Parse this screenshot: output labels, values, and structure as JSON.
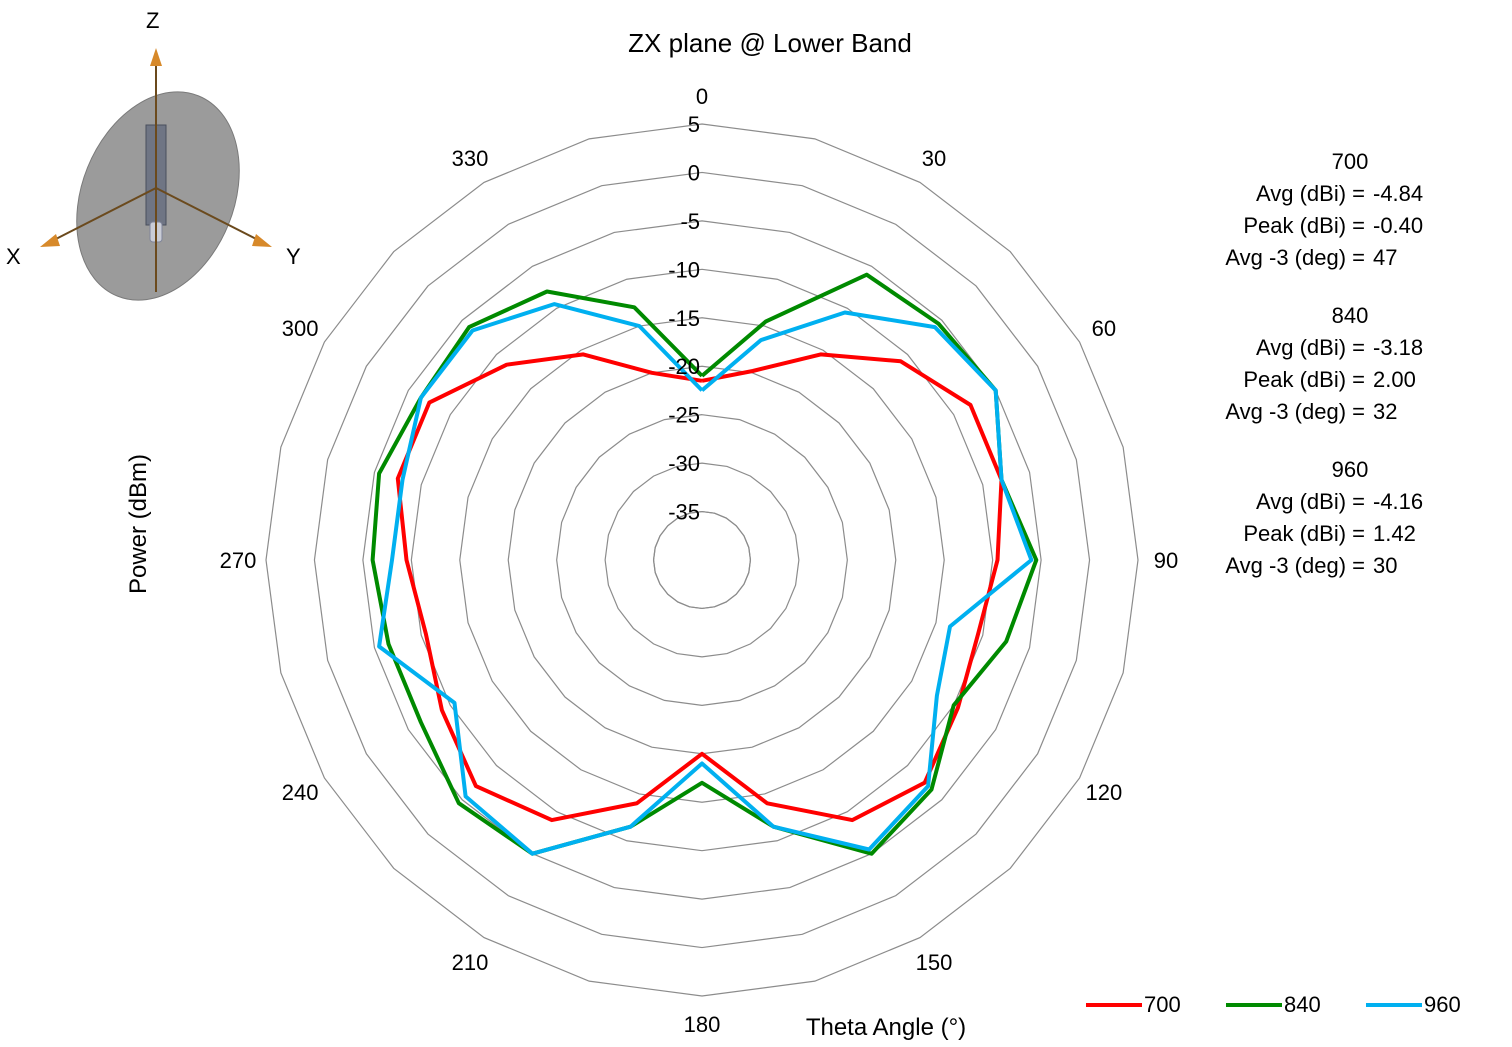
{
  "colors": {
    "s700": "#ff0000",
    "s840": "#008a00",
    "s960": "#00b0f0",
    "grid": "#8c8c8c"
  },
  "axis_icon": {
    "z": "Z",
    "x": "X",
    "y": "Y"
  },
  "stats": [
    {
      "name": "700",
      "avg_label": "Avg (dBi) =",
      "avg": "-4.84",
      "peak_label": "Peak (dBi) =",
      "peak": "-0.40",
      "avg3_label": "Avg -3 (deg) =",
      "avg3": "47"
    },
    {
      "name": "840",
      "avg_label": "Avg (dBi) =",
      "avg": "-3.18",
      "peak_label": "Peak (dBi) =",
      "peak": "2.00",
      "avg3_label": "Avg -3 (deg) =",
      "avg3": "32"
    },
    {
      "name": "960",
      "avg_label": "Avg (dBi) =",
      "avg": "-4.16",
      "peak_label": "Peak (dBi) =",
      "peak": "1.42",
      "avg3_label": "Avg -3 (deg) =",
      "avg3": "30"
    }
  ],
  "chart_data": {
    "type": "polar-line",
    "title": "ZX plane @ Lower Band",
    "radial_label": "Power (dBm)",
    "angle_label": "Theta  Angle (°)",
    "r_min": -40,
    "r_max": 5,
    "r_ticks": [
      5,
      0,
      -5,
      -10,
      -15,
      -20,
      -25,
      -30,
      -35
    ],
    "angle_ticks": [
      0,
      30,
      60,
      90,
      120,
      150,
      180,
      210,
      240,
      270,
      300,
      330
    ],
    "theta": [
      0,
      15,
      30,
      45,
      60,
      75,
      90,
      105,
      120,
      135,
      150,
      165,
      180,
      195,
      210,
      225,
      240,
      255,
      270,
      285,
      300,
      315,
      330,
      345,
      360
    ],
    "series": [
      {
        "name": "700",
        "color": "#ff0000",
        "values": [
          -21.5,
          -19.8,
          -15.5,
          -11,
          -8,
          -8,
          -9.5,
          -10.5,
          -9.5,
          -7.5,
          -9,
          -14,
          -20,
          -14,
          -9,
          -7,
          -9,
          -10.5,
          -9.5,
          -7.5,
          -7.5,
          -11.5,
          -15.5,
          -20,
          -21.5
        ]
      },
      {
        "name": "840",
        "color": "#008a00",
        "values": [
          -21,
          -14.5,
          -6,
          -5.5,
          -5,
          -8,
          -5.5,
          -7.5,
          -10,
          -6.5,
          -5,
          -11.5,
          -17,
          -11.5,
          -5,
          -4.5,
          -6.5,
          -6.5,
          -6,
          -5.5,
          -6.5,
          -6,
          -8,
          -13,
          -21
        ]
      },
      {
        "name": "960",
        "color": "#00b0f0",
        "values": [
          -22.5,
          -16.5,
          -10.5,
          -6,
          -5,
          -8,
          -6,
          -13.5,
          -12,
          -7,
          -5.5,
          -11.5,
          -19,
          -11.5,
          -5,
          -5.5,
          -10.5,
          -5.5,
          -8,
          -8,
          -6.5,
          -6.5,
          -9.5,
          -15,
          -22.5
        ]
      }
    ]
  }
}
